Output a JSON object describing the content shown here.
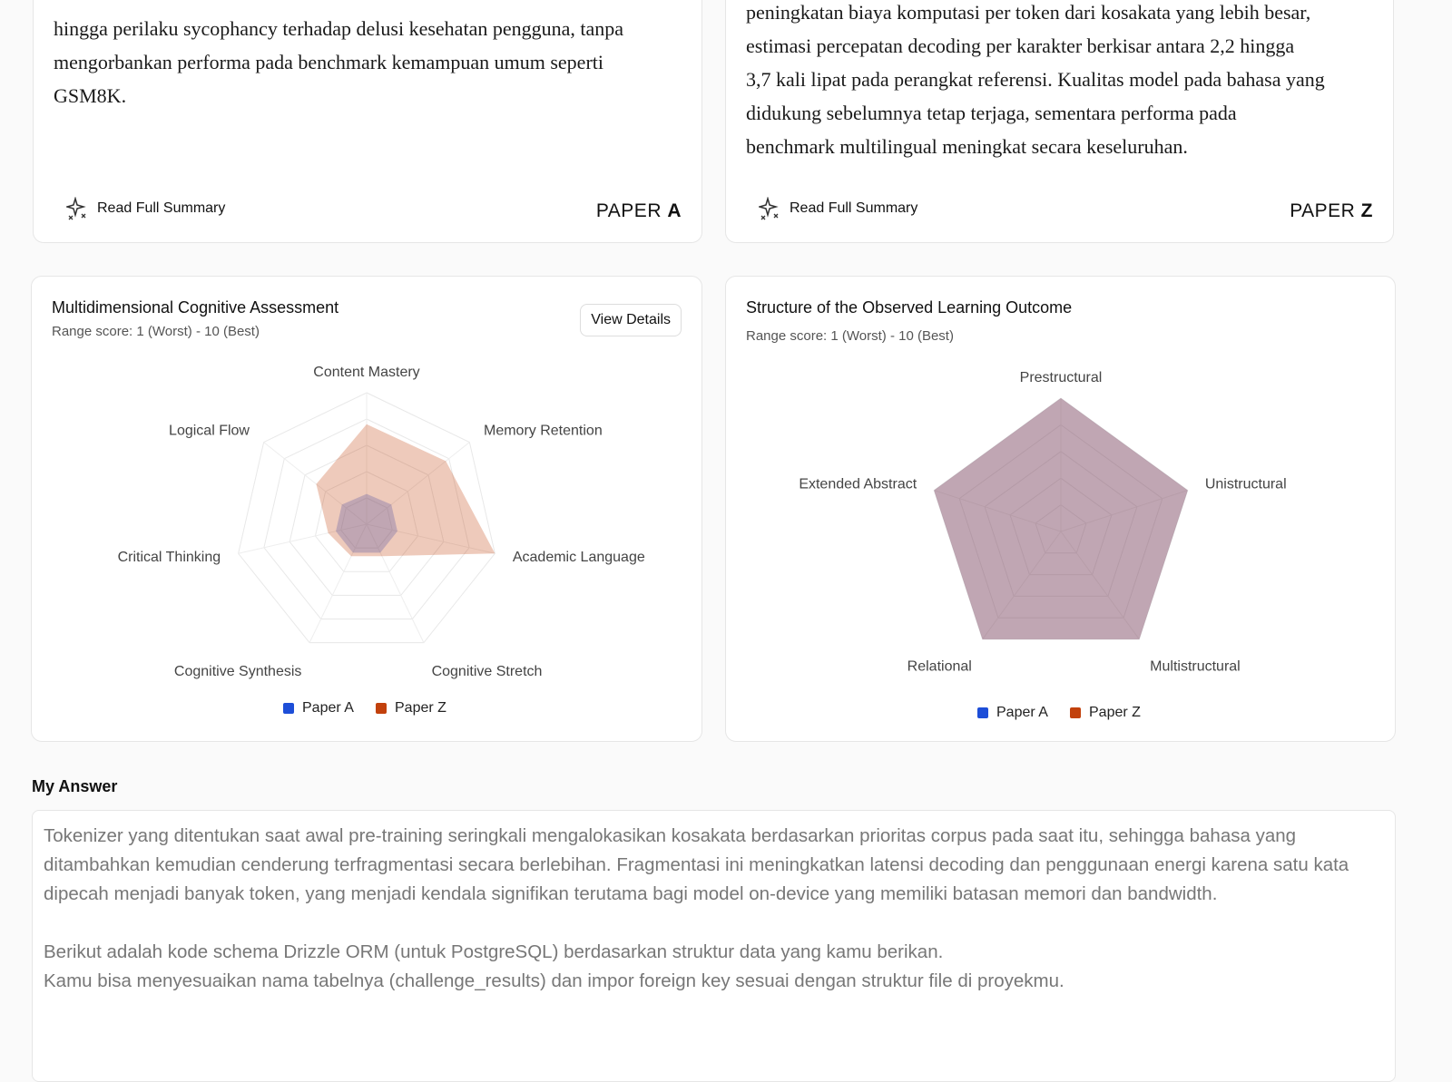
{
  "papers": [
    {
      "lines": [
        "hingga perilaku sycophancy terhadap delusi kesehatan pengguna, tanpa",
        "mengorbankan performa pada benchmark kemampuan umum seperti",
        "GSM8K."
      ],
      "action": "Read Full Summary",
      "label": "PAPER",
      "letter": "A"
    },
    {
      "lines": [
        "peningkatan biaya komputasi per token dari kosakata yang lebih besar,",
        "estimasi percepatan decoding per karakter berkisar antara 2,2 hingga",
        "3,7 kali lipat pada perangkat referensi. Kualitas model pada bahasa yang",
        "didukung sebelumnya tetap terjaga, sementara performa pada",
        "benchmark multilingual meningkat secara keseluruhan."
      ],
      "action": "Read Full Summary",
      "label": "PAPER",
      "letter": "Z"
    }
  ],
  "chart_data": [
    {
      "type": "radar",
      "title": "Multidimensional Cognitive Assessment",
      "subtitle": "Range score: 1 (Worst) - 10 (Best)",
      "button": "View Details",
      "categories": [
        "Content Mastery",
        "Memory Retention",
        "Academic Language",
        "Cognitive Stretch",
        "Cognitive Synthesis",
        "Critical Thinking",
        "Logical Flow"
      ],
      "series": [
        {
          "name": "Paper A",
          "color": "#1d4ed8",
          "values": [
            2.3,
            2.4,
            2.4,
            2.4,
            2.4,
            2.4,
            2.4
          ]
        },
        {
          "name": "Paper Z",
          "color": "#c2410c",
          "values": [
            7.6,
            7.7,
            10,
            2.7,
            2.7,
            3,
            4.9
          ]
        }
      ],
      "rlim": [
        0,
        10
      ],
      "rticks": [
        2,
        4,
        6,
        8,
        10
      ]
    },
    {
      "type": "radar",
      "title": "Structure of the Observed Learning Outcome",
      "subtitle": "Range score: 1 (Worst) - 10 (Best)",
      "categories": [
        "Prestructural",
        "Unistructural",
        "Multistructural",
        "Relational",
        "Extended Abstract"
      ],
      "series": [
        {
          "name": "Paper A",
          "color": "#1d4ed8",
          "values": [
            10,
            10,
            10,
            10,
            10
          ]
        },
        {
          "name": "Paper Z",
          "color": "#c2410c",
          "values": [
            10,
            10,
            10,
            10,
            10
          ]
        }
      ],
      "rlim": [
        0,
        10
      ],
      "rticks": [
        2,
        4,
        6,
        8,
        10
      ]
    }
  ],
  "answer": {
    "heading": "My Answer",
    "paragraph1": "Tokenizer yang ditentukan saat awal pre-training seringkali mengalokasikan kosakata berdasarkan prioritas corpus pada saat itu, sehingga bahasa yang ditambahkan kemudian cenderung terfragmentasi secara berlebihan. Fragmentasi ini meningkatkan latensi decoding dan penggunaan energi karena satu kata dipecah menjadi banyak token, yang menjadi kendala signifikan terutama bagi model on-device yang memiliki batasan memori dan bandwidth.",
    "line2": "Berikut adalah kode schema Drizzle ORM (untuk PostgreSQL) berdasarkan struktur data yang kamu berikan.",
    "line3": "Kamu bisa menyesuaikan nama tabelnya (challenge_results) dan impor foreign key sesuai dengan struktur file di proyekmu."
  }
}
